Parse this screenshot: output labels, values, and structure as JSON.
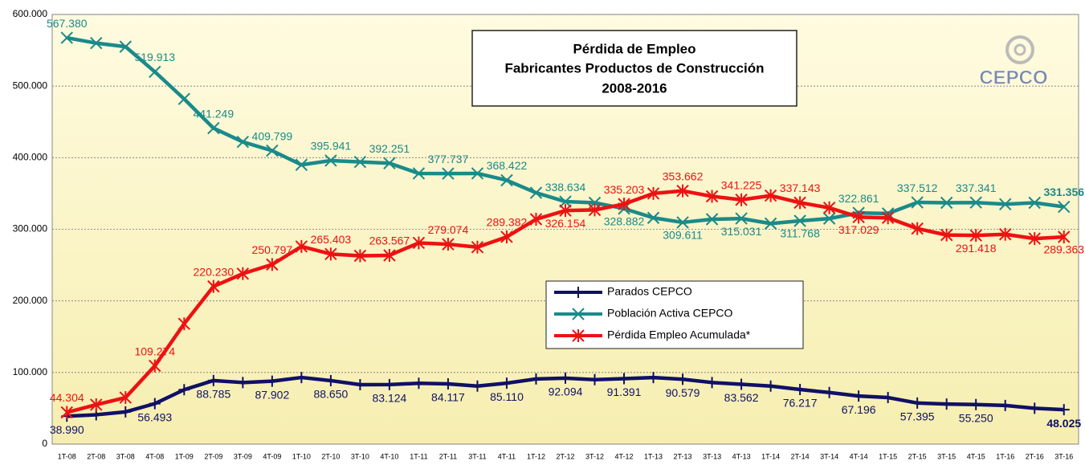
{
  "chart_data": {
    "type": "line",
    "title": [
      "Pérdida de Empleo",
      "Fabricantes Productos de Construcción",
      "2008-2016"
    ],
    "logo": "CEPCO",
    "categories": [
      "1T-08",
      "2T-08",
      "3T-08",
      "4T-08",
      "1T-09",
      "2T-09",
      "3T-09",
      "4T-09",
      "1T-10",
      "2T-10",
      "3T-10",
      "4T-10",
      "1T-11",
      "2T-11",
      "3T-11",
      "4T-11",
      "1T-12",
      "2T-12",
      "3T-12",
      "4T-12",
      "1T-13",
      "2T-13",
      "3T-13",
      "4T-13",
      "1T-14",
      "2T-14",
      "3T-14",
      "4T-14",
      "1T-15",
      "2T-15",
      "3T-15",
      "4T-15",
      "1T-16",
      "2T-16",
      "3T-16"
    ],
    "series": [
      {
        "name": "Parados CEPCO",
        "color": "#101066",
        "marker": "plus",
        "values": [
          38990,
          41000,
          45000,
          56493,
          76000,
          88785,
          86000,
          87902,
          93000,
          88650,
          83000,
          83124,
          85000,
          84117,
          81000,
          85110,
          91000,
          92094,
          90000,
          91391,
          93000,
          90579,
          86000,
          83562,
          81000,
          76217,
          72000,
          67196,
          65000,
          57395,
          56000,
          55250,
          54000,
          50000,
          48025
        ],
        "value_labels": [
          "38.990",
          null,
          null,
          "56.493",
          null,
          "88.785",
          null,
          "87.902",
          null,
          "88.650",
          null,
          "83.124",
          null,
          "84.117",
          null,
          "85.110",
          null,
          "92.094",
          null,
          "91.391",
          null,
          "90.579",
          null,
          "83.562",
          null,
          "76.217",
          null,
          "67.196",
          null,
          "57.395",
          null,
          "55.250",
          null,
          null,
          "48.025"
        ]
      },
      {
        "name": "Población Activa CEPCO",
        "color": "#1a8a8a",
        "marker": "x",
        "values": [
          567380,
          560000,
          555000,
          519913,
          482000,
          441249,
          422000,
          409799,
          390000,
          395941,
          394000,
          392251,
          378000,
          377737,
          378000,
          368422,
          351000,
          338634,
          337000,
          328882,
          316000,
          309611,
          314000,
          315031,
          308000,
          311768,
          315000,
          322861,
          322000,
          337512,
          337000,
          337341,
          335000,
          337000,
          331356
        ],
        "value_labels": [
          "567.380",
          null,
          null,
          "519.913",
          null,
          "441.249",
          null,
          "409.799",
          null,
          "395.941",
          null,
          "392.251",
          null,
          "377.737",
          null,
          "368.422",
          null,
          "338.634",
          null,
          "328.882",
          null,
          "309.611",
          null,
          "315.031",
          null,
          "311.768",
          null,
          "322.861",
          null,
          "337.512",
          null,
          "337.341",
          null,
          null,
          "331.356"
        ]
      },
      {
        "name": "Pérdida Empleo Acumulada*",
        "color": "#ee1111",
        "marker": "star",
        "values": [
          44304,
          55000,
          65000,
          109274,
          168000,
          220230,
          238000,
          250797,
          276000,
          265403,
          263000,
          263567,
          281000,
          279074,
          275000,
          289382,
          314000,
          326154,
          327000,
          335203,
          350000,
          353662,
          346000,
          341225,
          347000,
          337143,
          330000,
          317029,
          316000,
          301000,
          292000,
          291418,
          293000,
          287000,
          289363
        ],
        "value_labels": [
          "44.304",
          null,
          null,
          "109.274",
          null,
          "220.230",
          null,
          "250.797",
          null,
          "265.403",
          null,
          "263.567",
          null,
          "279.074",
          null,
          "289.382",
          null,
          "326.154",
          null,
          "335.203",
          null,
          "353.662",
          null,
          "341.225",
          null,
          "337.143",
          null,
          "317.029",
          null,
          null,
          null,
          "291.418",
          null,
          null,
          "289.363"
        ]
      }
    ],
    "ylim": [
      0,
      600000
    ],
    "yticks": [
      0,
      {
        "value": 100000,
        "label": "100.000"
      },
      {
        "value": 200000,
        "label": "200.000"
      },
      {
        "value": 300000,
        "label": "300.000"
      },
      {
        "value": 400000,
        "label": "400.000"
      },
      {
        "value": 500000,
        "label": "500.000"
      },
      {
        "value": 600000,
        "label": "600.000"
      }
    ],
    "grid": true
  }
}
